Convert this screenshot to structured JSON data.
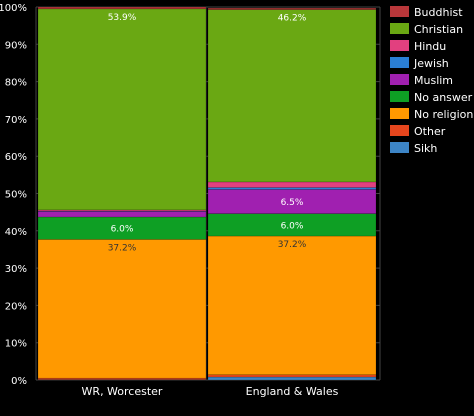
{
  "chart_data": {
    "type": "bar",
    "stacked": true,
    "categories": [
      "WR, Worcester",
      "England & Wales"
    ],
    "series": [
      {
        "name": "Sikh",
        "color": "#3d85c6",
        "values": [
          0.1,
          0.8
        ]
      },
      {
        "name": "Other",
        "color": "#e6461d",
        "values": [
          0.4,
          0.6
        ]
      },
      {
        "name": "No religion",
        "color": "#ff9900",
        "values": [
          37.2,
          37.2
        ]
      },
      {
        "name": "No answer",
        "color": "#0e9f24",
        "values": [
          6.0,
          6.0
        ]
      },
      {
        "name": "Muslim",
        "color": "#a020b0",
        "values": [
          1.5,
          6.5
        ]
      },
      {
        "name": "Jewish",
        "color": "#2a7fd4",
        "values": [
          0.1,
          0.5
        ]
      },
      {
        "name": "Hindu",
        "color": "#e2407f",
        "values": [
          0.3,
          1.5
        ]
      },
      {
        "name": "Christian",
        "color": "#6aa813",
        "values": [
          53.9,
          46.2
        ]
      },
      {
        "name": "Buddhist",
        "color": "#b9373a",
        "values": [
          0.5,
          0.4
        ]
      }
    ],
    "data_labels": [
      {
        "category": "WR, Worcester",
        "series": "Christian",
        "text": "53.9%"
      },
      {
        "category": "WR, Worcester",
        "series": "No answer",
        "text": "6.0%"
      },
      {
        "category": "WR, Worcester",
        "series": "No religion",
        "text": "37.2%"
      },
      {
        "category": "England & Wales",
        "series": "Christian",
        "text": "46.2%"
      },
      {
        "category": "England & Wales",
        "series": "Muslim",
        "text": "6.5%"
      },
      {
        "category": "England & Wales",
        "series": "No answer",
        "text": "6.0%"
      },
      {
        "category": "England & Wales",
        "series": "No religion",
        "text": "37.2%"
      }
    ],
    "legend_order": [
      "Buddhist",
      "Christian",
      "Hindu",
      "Jewish",
      "Muslim",
      "No answer",
      "No religion",
      "Other",
      "Sikh"
    ],
    "legend_position": "top-right",
    "yticks": [
      "0%",
      "10%",
      "20%",
      "30%",
      "40%",
      "50%",
      "60%",
      "70%",
      "80%",
      "90%",
      "100%"
    ],
    "ylim": [
      0,
      100
    ],
    "grid": true,
    "background": "#000000",
    "grid_color": "#444444"
  }
}
